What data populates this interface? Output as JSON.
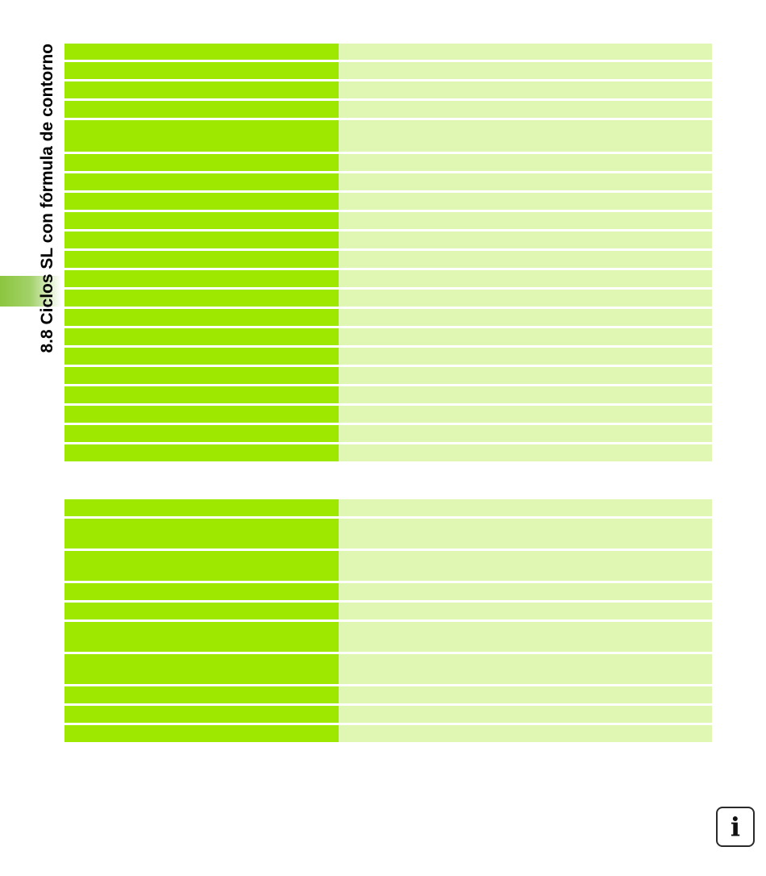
{
  "page": {
    "section_title": "8.8 Ciclos SL con fórmula de contorno",
    "info_icon": "info-icon",
    "info_glyph": "i"
  },
  "colors": {
    "left_cell": "#9ee800",
    "right_cell": "#dff7b2",
    "tab_accent": "#8cc63f"
  },
  "table1": {
    "rows": [
      {
        "left": "",
        "right": ""
      },
      {
        "left": "",
        "right": ""
      },
      {
        "left": "",
        "right": ""
      },
      {
        "left": "",
        "right": ""
      },
      {
        "left": "",
        "right": ""
      },
      {
        "left": "",
        "right": ""
      },
      {
        "left": "",
        "right": ""
      },
      {
        "left": "",
        "right": ""
      },
      {
        "left": "",
        "right": ""
      },
      {
        "left": "",
        "right": ""
      },
      {
        "left": "",
        "right": ""
      },
      {
        "left": "",
        "right": ""
      },
      {
        "left": "",
        "right": ""
      },
      {
        "left": "",
        "right": ""
      },
      {
        "left": "",
        "right": ""
      },
      {
        "left": "",
        "right": ""
      },
      {
        "left": "",
        "right": ""
      },
      {
        "left": "",
        "right": ""
      },
      {
        "left": "",
        "right": ""
      },
      {
        "left": "",
        "right": ""
      },
      {
        "left": "",
        "right": ""
      }
    ]
  },
  "table2": {
    "rows": [
      {
        "left": "",
        "right": ""
      },
      {
        "left": "",
        "right": ""
      },
      {
        "left": "",
        "right": ""
      },
      {
        "left": "",
        "right": ""
      },
      {
        "left": "",
        "right": ""
      },
      {
        "left": "",
        "right": ""
      },
      {
        "left": "",
        "right": ""
      },
      {
        "left": "",
        "right": ""
      },
      {
        "left": "",
        "right": ""
      },
      {
        "left": "",
        "right": ""
      },
      {
        "left": "",
        "right": ""
      }
    ]
  }
}
